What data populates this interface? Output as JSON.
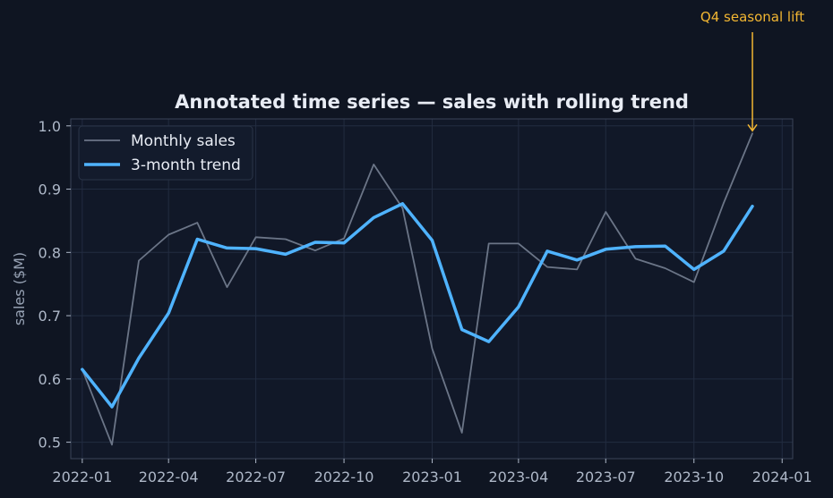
{
  "chart_data": {
    "type": "line",
    "title": "Annotated time series — sales with rolling trend",
    "xlabel": "",
    "ylabel": "sales ($M)",
    "x": [
      "2022-01-01",
      "2022-02-01",
      "2022-03-01",
      "2022-04-01",
      "2022-05-01",
      "2022-06-01",
      "2022-07-01",
      "2022-08-01",
      "2022-09-01",
      "2022-10-01",
      "2022-11-01",
      "2022-12-01",
      "2023-01-01",
      "2023-02-01",
      "2023-03-01",
      "2023-04-01",
      "2023-05-01",
      "2023-06-01",
      "2023-07-01",
      "2023-08-01",
      "2023-09-01",
      "2023-10-01",
      "2023-11-01",
      "2023-12-01"
    ],
    "series": [
      {
        "name": "Monthly sales",
        "color": "#6b7587",
        "values": [
          0.615,
          0.496,
          0.787,
          0.828,
          0.847,
          0.745,
          0.824,
          0.821,
          0.803,
          0.822,
          0.939,
          0.87,
          0.648,
          0.515,
          0.814,
          0.814,
          0.777,
          0.773,
          0.864,
          0.79,
          0.775,
          0.753,
          0.878,
          0.988
        ]
      },
      {
        "name": "3-month trend",
        "color": "#4fb3ff",
        "values": [
          0.615,
          0.556,
          0.633,
          0.704,
          0.821,
          0.807,
          0.806,
          0.797,
          0.816,
          0.815,
          0.855,
          0.877,
          0.819,
          0.678,
          0.659,
          0.714,
          0.802,
          0.788,
          0.805,
          0.809,
          0.81,
          0.773,
          0.802,
          0.873
        ]
      }
    ],
    "xlim": [
      "2021-12-20",
      "2024-01-12"
    ],
    "ylim": [
      0.474,
      1.011
    ],
    "xticks": [
      {
        "date": "2022-01-01",
        "label": "2022-01"
      },
      {
        "date": "2022-04-01",
        "label": "2022-04"
      },
      {
        "date": "2022-07-01",
        "label": "2022-07"
      },
      {
        "date": "2022-10-01",
        "label": "2022-10"
      },
      {
        "date": "2023-01-01",
        "label": "2023-01"
      },
      {
        "date": "2023-04-01",
        "label": "2023-04"
      },
      {
        "date": "2023-07-01",
        "label": "2023-07"
      },
      {
        "date": "2023-10-01",
        "label": "2023-10"
      },
      {
        "date": "2024-01-01",
        "label": "2024-01"
      }
    ],
    "yticks": [
      0.5,
      0.6,
      0.7,
      0.8,
      0.9,
      1.0
    ],
    "ytick_labels": [
      "0.5",
      "0.6",
      "0.7",
      "0.8",
      "0.9",
      "1.0"
    ],
    "grid": true,
    "legend_position": "top-left",
    "annotation": {
      "text": "Q4 seasonal lift",
      "x": "2023-12-01",
      "y": 0.988,
      "color": "#f2b632"
    },
    "colors": {
      "background": "#0f1522",
      "plot_background": "#111828",
      "grid": "#222c40",
      "axis": "#3a4458"
    }
  }
}
